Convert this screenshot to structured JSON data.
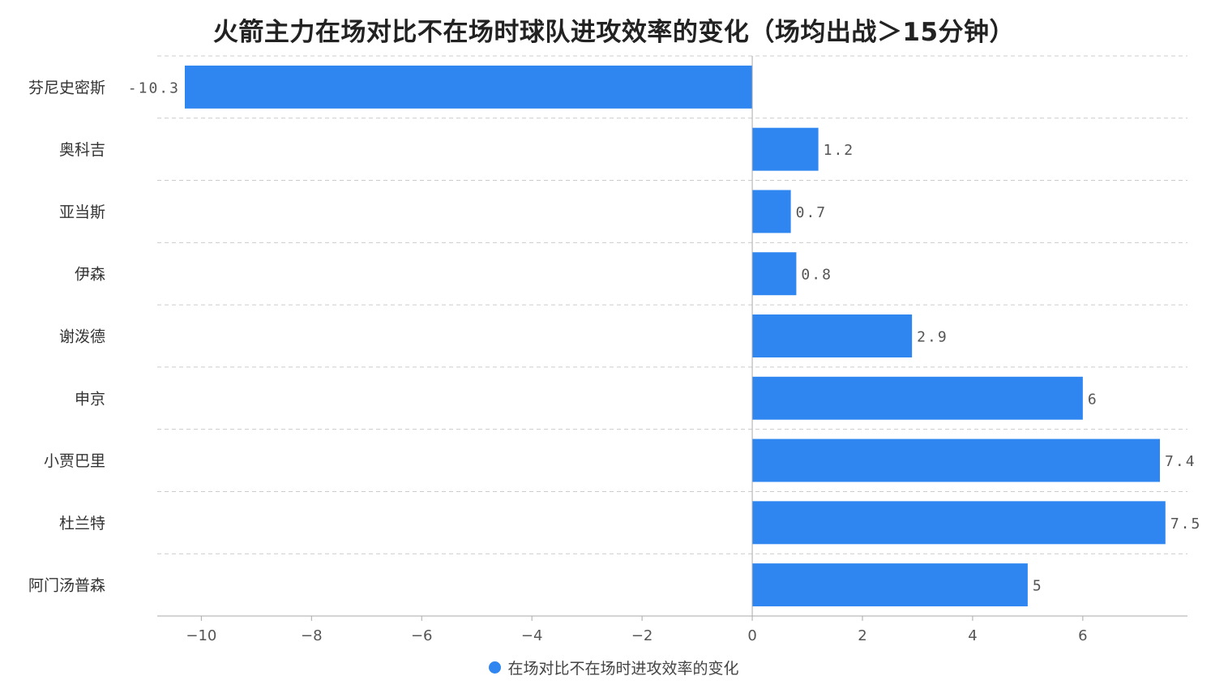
{
  "chart_data": {
    "type": "bar",
    "orientation": "horizontal",
    "title": "火箭主力在场对比不在场时球队进攻效率的变化（场均出战＞15分钟）",
    "categories": [
      "芬尼史密斯",
      "奥科吉",
      "亚当斯",
      "伊森",
      "谢泼德",
      "申京",
      "小贾巴里",
      "杜兰特",
      "阿门汤普森"
    ],
    "series": [
      {
        "name": "在场对比不在场时进攻效率的变化",
        "color": "#2f86f0",
        "values": [
          -10.3,
          1.2,
          0.7,
          0.8,
          2.9,
          6,
          7.4,
          7.5,
          5
        ],
        "labels": [
          "-10.3",
          "1.2",
          "0.7",
          "0.8",
          "2.9",
          "6",
          "7.4",
          "7.5",
          "5"
        ]
      }
    ],
    "xlim": [
      -10.8,
      7.9
    ],
    "xticks": [
      -10,
      -8,
      -6,
      -4,
      -2,
      0,
      2,
      4,
      6
    ],
    "xtick_labels": [
      "−10",
      "−8",
      "−6",
      "−4",
      "−2",
      "0",
      "2",
      "4",
      "6"
    ],
    "grid": "horizontal dashed",
    "legend_position": "bottom-center"
  }
}
